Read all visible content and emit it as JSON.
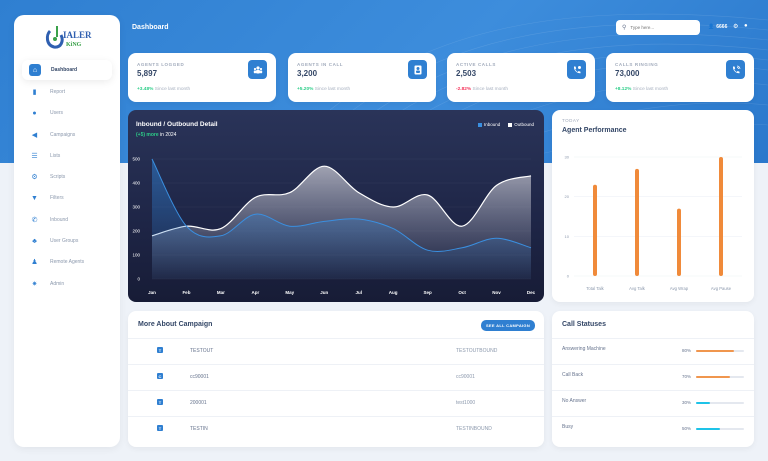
{
  "header": {
    "title": "Dashboard",
    "search_placeholder": "Type here...",
    "user_label": "6666"
  },
  "brand": {
    "name_top": "IALER",
    "name_bottom": "KiNG",
    "letter": "D"
  },
  "sidebar": {
    "items": [
      {
        "label": "Dashboard",
        "icon": "home-icon",
        "active": true
      },
      {
        "label": "Report",
        "icon": "document-icon"
      },
      {
        "label": "Users",
        "icon": "user-icon"
      },
      {
        "label": "Campaigns",
        "icon": "megaphone-icon"
      },
      {
        "label": "Lists",
        "icon": "list-icon"
      },
      {
        "label": "Scripts",
        "icon": "gear-icon"
      },
      {
        "label": "Filters",
        "icon": "filter-icon"
      },
      {
        "label": "Inbound",
        "icon": "phone-incoming-icon"
      },
      {
        "label": "User Groups",
        "icon": "users-group-icon"
      },
      {
        "label": "Remote Agents",
        "icon": "remote-agent-icon"
      },
      {
        "label": "Admin",
        "icon": "settings-icon"
      }
    ]
  },
  "stats": [
    {
      "label": "AGENTS LOGGED",
      "value": "5,897",
      "change": "+3.48%",
      "trend": "up",
      "since": "Since last month",
      "icon": "users-group-icon"
    },
    {
      "label": "AGENTS IN CALL",
      "value": "3,200",
      "change": "+5.20%",
      "trend": "up",
      "since": "Since last month",
      "icon": "user-badge-icon"
    },
    {
      "label": "ACTIVE CALLS",
      "value": "2,503",
      "change": "-2.82%",
      "trend": "down",
      "since": "Since last month",
      "icon": "phone-active-icon"
    },
    {
      "label": "CALLS RINGING",
      "value": "73,000",
      "change": "+8.12%",
      "trend": "up",
      "since": "Since last month",
      "icon": "phone-ringing-icon"
    }
  ],
  "inout_chart": {
    "title": "Inbound / Outbound Detail",
    "sub_highlight": "(+5) more",
    "sub_rest": " in 2024",
    "legend": [
      {
        "name": "Inbound",
        "color": "#3a8fe0"
      },
      {
        "name": "Outbound",
        "color": "#ffffff"
      }
    ]
  },
  "perf_chart": {
    "kicker": "TODAY",
    "title": "Agent Performance"
  },
  "campaign": {
    "title": "More About Campaign",
    "button": "SEE ALL CAMPAIGN",
    "rows": [
      {
        "badge": "T",
        "id": "TESTOUT",
        "name": "TESTOUTBOUND"
      },
      {
        "badge": "C",
        "id": "cc90001",
        "name": "cc90001"
      },
      {
        "badge": "T",
        "id": "200001",
        "name": "test1000"
      },
      {
        "badge": "T",
        "id": "TESTIN",
        "name": "TESTINBOUND"
      }
    ]
  },
  "call_statuses": {
    "title": "Call Statuses",
    "rows": [
      {
        "label": "Answering Machine",
        "pct": "80%",
        "value": 80,
        "color": "#f0964e"
      },
      {
        "label": "Call Back",
        "pct": "70%",
        "value": 70,
        "color": "#f0964e"
      },
      {
        "label": "No Answer",
        "pct": "30%",
        "value": 30,
        "color": "#1ec3e8"
      },
      {
        "label": "Busy",
        "pct": "50%",
        "value": 50,
        "color": "#1ec3e8"
      }
    ]
  },
  "chart_data": [
    {
      "type": "area",
      "title": "Inbound / Outbound Detail",
      "subtitle": "(+5) more in 2024",
      "x": [
        "Jan",
        "Feb",
        "Mar",
        "Apr",
        "May",
        "Jun",
        "Jul",
        "Aug",
        "Sep",
        "Oct",
        "Nov",
        "Dec"
      ],
      "series": [
        {
          "name": "Inbound",
          "values": [
            500,
            220,
            180,
            270,
            220,
            240,
            250,
            210,
            120,
            130,
            170,
            130
          ]
        },
        {
          "name": "Outbound",
          "values": [
            180,
            220,
            210,
            340,
            360,
            470,
            360,
            300,
            350,
            220,
            390,
            430
          ]
        }
      ],
      "yticks": [
        0,
        100,
        200,
        300,
        400,
        500
      ],
      "ylim": [
        0,
        500
      ],
      "grid": true,
      "legend_position": "top-right"
    },
    {
      "type": "bar",
      "title": "Agent Performance",
      "subtitle": "TODAY",
      "categories": [
        "Total Talk",
        "Avg Talk",
        "Avg Wrap",
        "Avg Pause"
      ],
      "values": [
        23,
        27,
        17,
        30
      ],
      "yticks": [
        0,
        10,
        20,
        30
      ],
      "ylim": [
        0,
        30
      ],
      "grid": true,
      "color": "#f08a3a"
    }
  ]
}
